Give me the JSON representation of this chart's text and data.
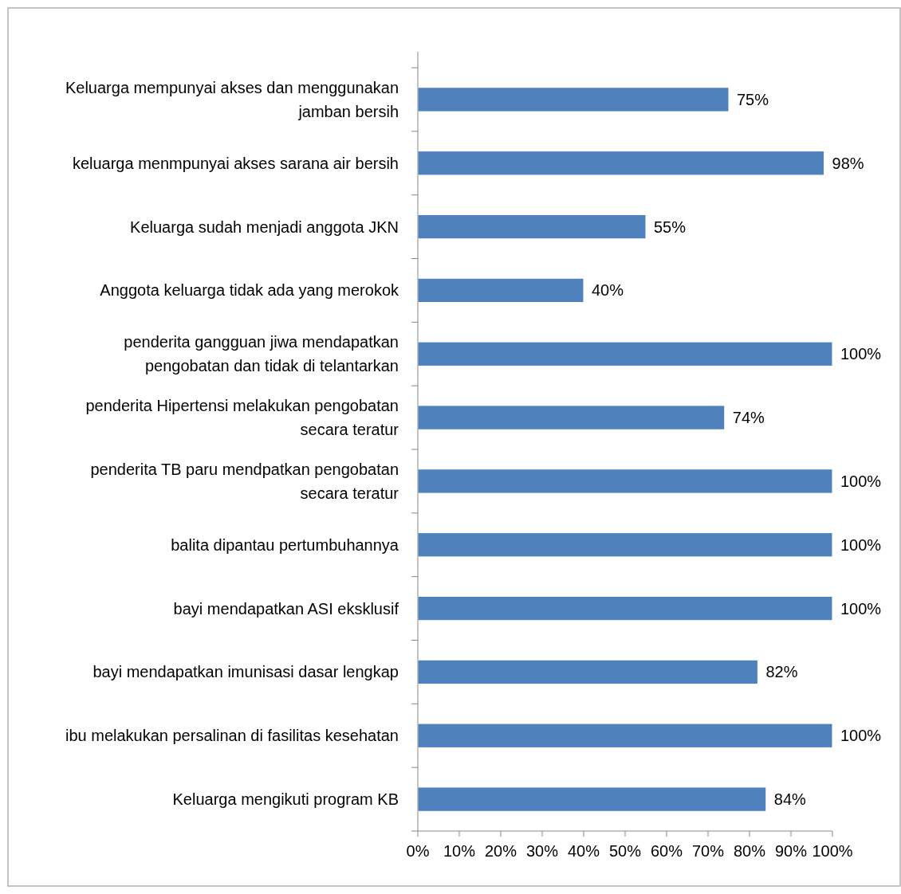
{
  "chart_data": {
    "type": "bar",
    "orientation": "horizontal",
    "categories": [
      "Keluarga mempunyai akses dan menggunakan jamban bersih",
      "keluarga menmpunyai akses sarana air bersih",
      "Keluarga sudah menjadi anggota JKN",
      "Anggota keluarga tidak ada yang merokok",
      "penderita gangguan jiwa mendapatkan pengobatan dan tidak di telantarkan",
      "penderita Hipertensi melakukan pengobatan secara teratur",
      "penderita TB paru mendpatkan pengobatan secara teratur",
      "balita dipantau pertumbuhannya",
      "bayi mendapatkan ASI eksklusif",
      "bayi mendapatkan imunisasi dasar lengkap",
      "ibu melakukan persalinan di fasilitas kesehatan",
      "Keluarga mengikuti program KB"
    ],
    "values": [
      75,
      98,
      55,
      40,
      100,
      74,
      100,
      100,
      100,
      82,
      100,
      84
    ],
    "value_labels": [
      "75%",
      "98%",
      "55%",
      "40%",
      "100%",
      "74%",
      "100%",
      "100%",
      "100%",
      "82%",
      "100%",
      "84%"
    ],
    "color": "#4f81bd",
    "xlim": [
      0,
      100
    ],
    "xticks": [
      {
        "value": 0,
        "label": "0%"
      },
      {
        "value": 10,
        "label": "10%"
      },
      {
        "value": 20,
        "label": "20%"
      },
      {
        "value": 30,
        "label": "30%"
      },
      {
        "value": 40,
        "label": "40%"
      },
      {
        "value": 50,
        "label": "50%"
      },
      {
        "value": 60,
        "label": "60%"
      },
      {
        "value": 70,
        "label": "70%"
      },
      {
        "value": 80,
        "label": "80%"
      },
      {
        "value": 90,
        "label": "90%"
      },
      {
        "value": 100,
        "label": "100%"
      }
    ],
    "grid": false
  }
}
